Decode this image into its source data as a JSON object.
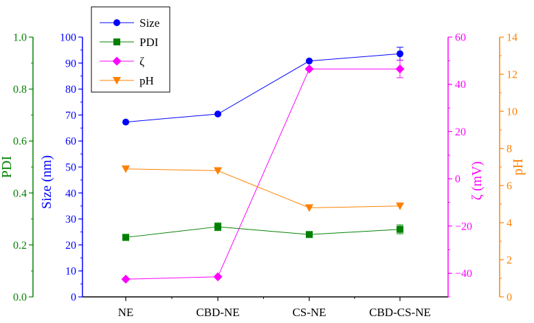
{
  "chart_data": {
    "type": "line",
    "categories": [
      "NE",
      "CBD-NE",
      "CS-NE",
      "CBD-CS-NE"
    ],
    "series": [
      {
        "name": "Size",
        "axis": "size",
        "color": "#0000ff",
        "marker": "circle",
        "values": [
          67.3,
          70.4,
          90.8,
          93.6
        ],
        "errors": [
          0,
          0,
          0,
          2.5
        ]
      },
      {
        "name": "PDI",
        "axis": "pdi",
        "color": "#008000",
        "marker": "square",
        "values": [
          0.229,
          0.27,
          0.24,
          0.26
        ],
        "errors": [
          0.012,
          0.015,
          0,
          0.017
        ]
      },
      {
        "name": "ζ",
        "axis": "zeta",
        "color": "#ff00ff",
        "marker": "diamond",
        "values": [
          -42.5,
          -41.5,
          46.5,
          46.5
        ],
        "errors": [
          0,
          0,
          0,
          3.7
        ]
      },
      {
        "name": "pH",
        "axis": "ph",
        "color": "#ff8000",
        "marker": "triangle-down",
        "values": [
          6.9,
          6.8,
          4.8,
          4.9
        ],
        "errors": [
          0,
          0,
          0,
          0
        ]
      }
    ],
    "axes": {
      "pdi": {
        "label": "PDI",
        "color": "#008000",
        "min": 0,
        "max": 1.0,
        "ticks": [
          "0.0",
          "0.2",
          "0.4",
          "0.6",
          "0.8",
          "1.0"
        ],
        "minor": 0.1
      },
      "size": {
        "label": "Size (nm)",
        "color": "#0000ff",
        "min": 0,
        "max": 100,
        "ticks": [
          "0",
          "10",
          "20",
          "30",
          "40",
          "50",
          "60",
          "70",
          "80",
          "90",
          "100"
        ],
        "minor": 5
      },
      "zeta": {
        "label": "ζ (mV)",
        "color": "#ff00ff",
        "min": -50,
        "max": 60,
        "ticks": [
          "-40",
          "-20",
          "0",
          "20",
          "40",
          "60"
        ],
        "minor": 10
      },
      "ph": {
        "label": "pH",
        "color": "#ff8000",
        "min": 0,
        "max": 14,
        "ticks": [
          "0",
          "2",
          "4",
          "6",
          "8",
          "10",
          "12",
          "14"
        ],
        "minor": 1
      }
    },
    "legend": {
      "position": "top-left"
    },
    "grid": false
  }
}
